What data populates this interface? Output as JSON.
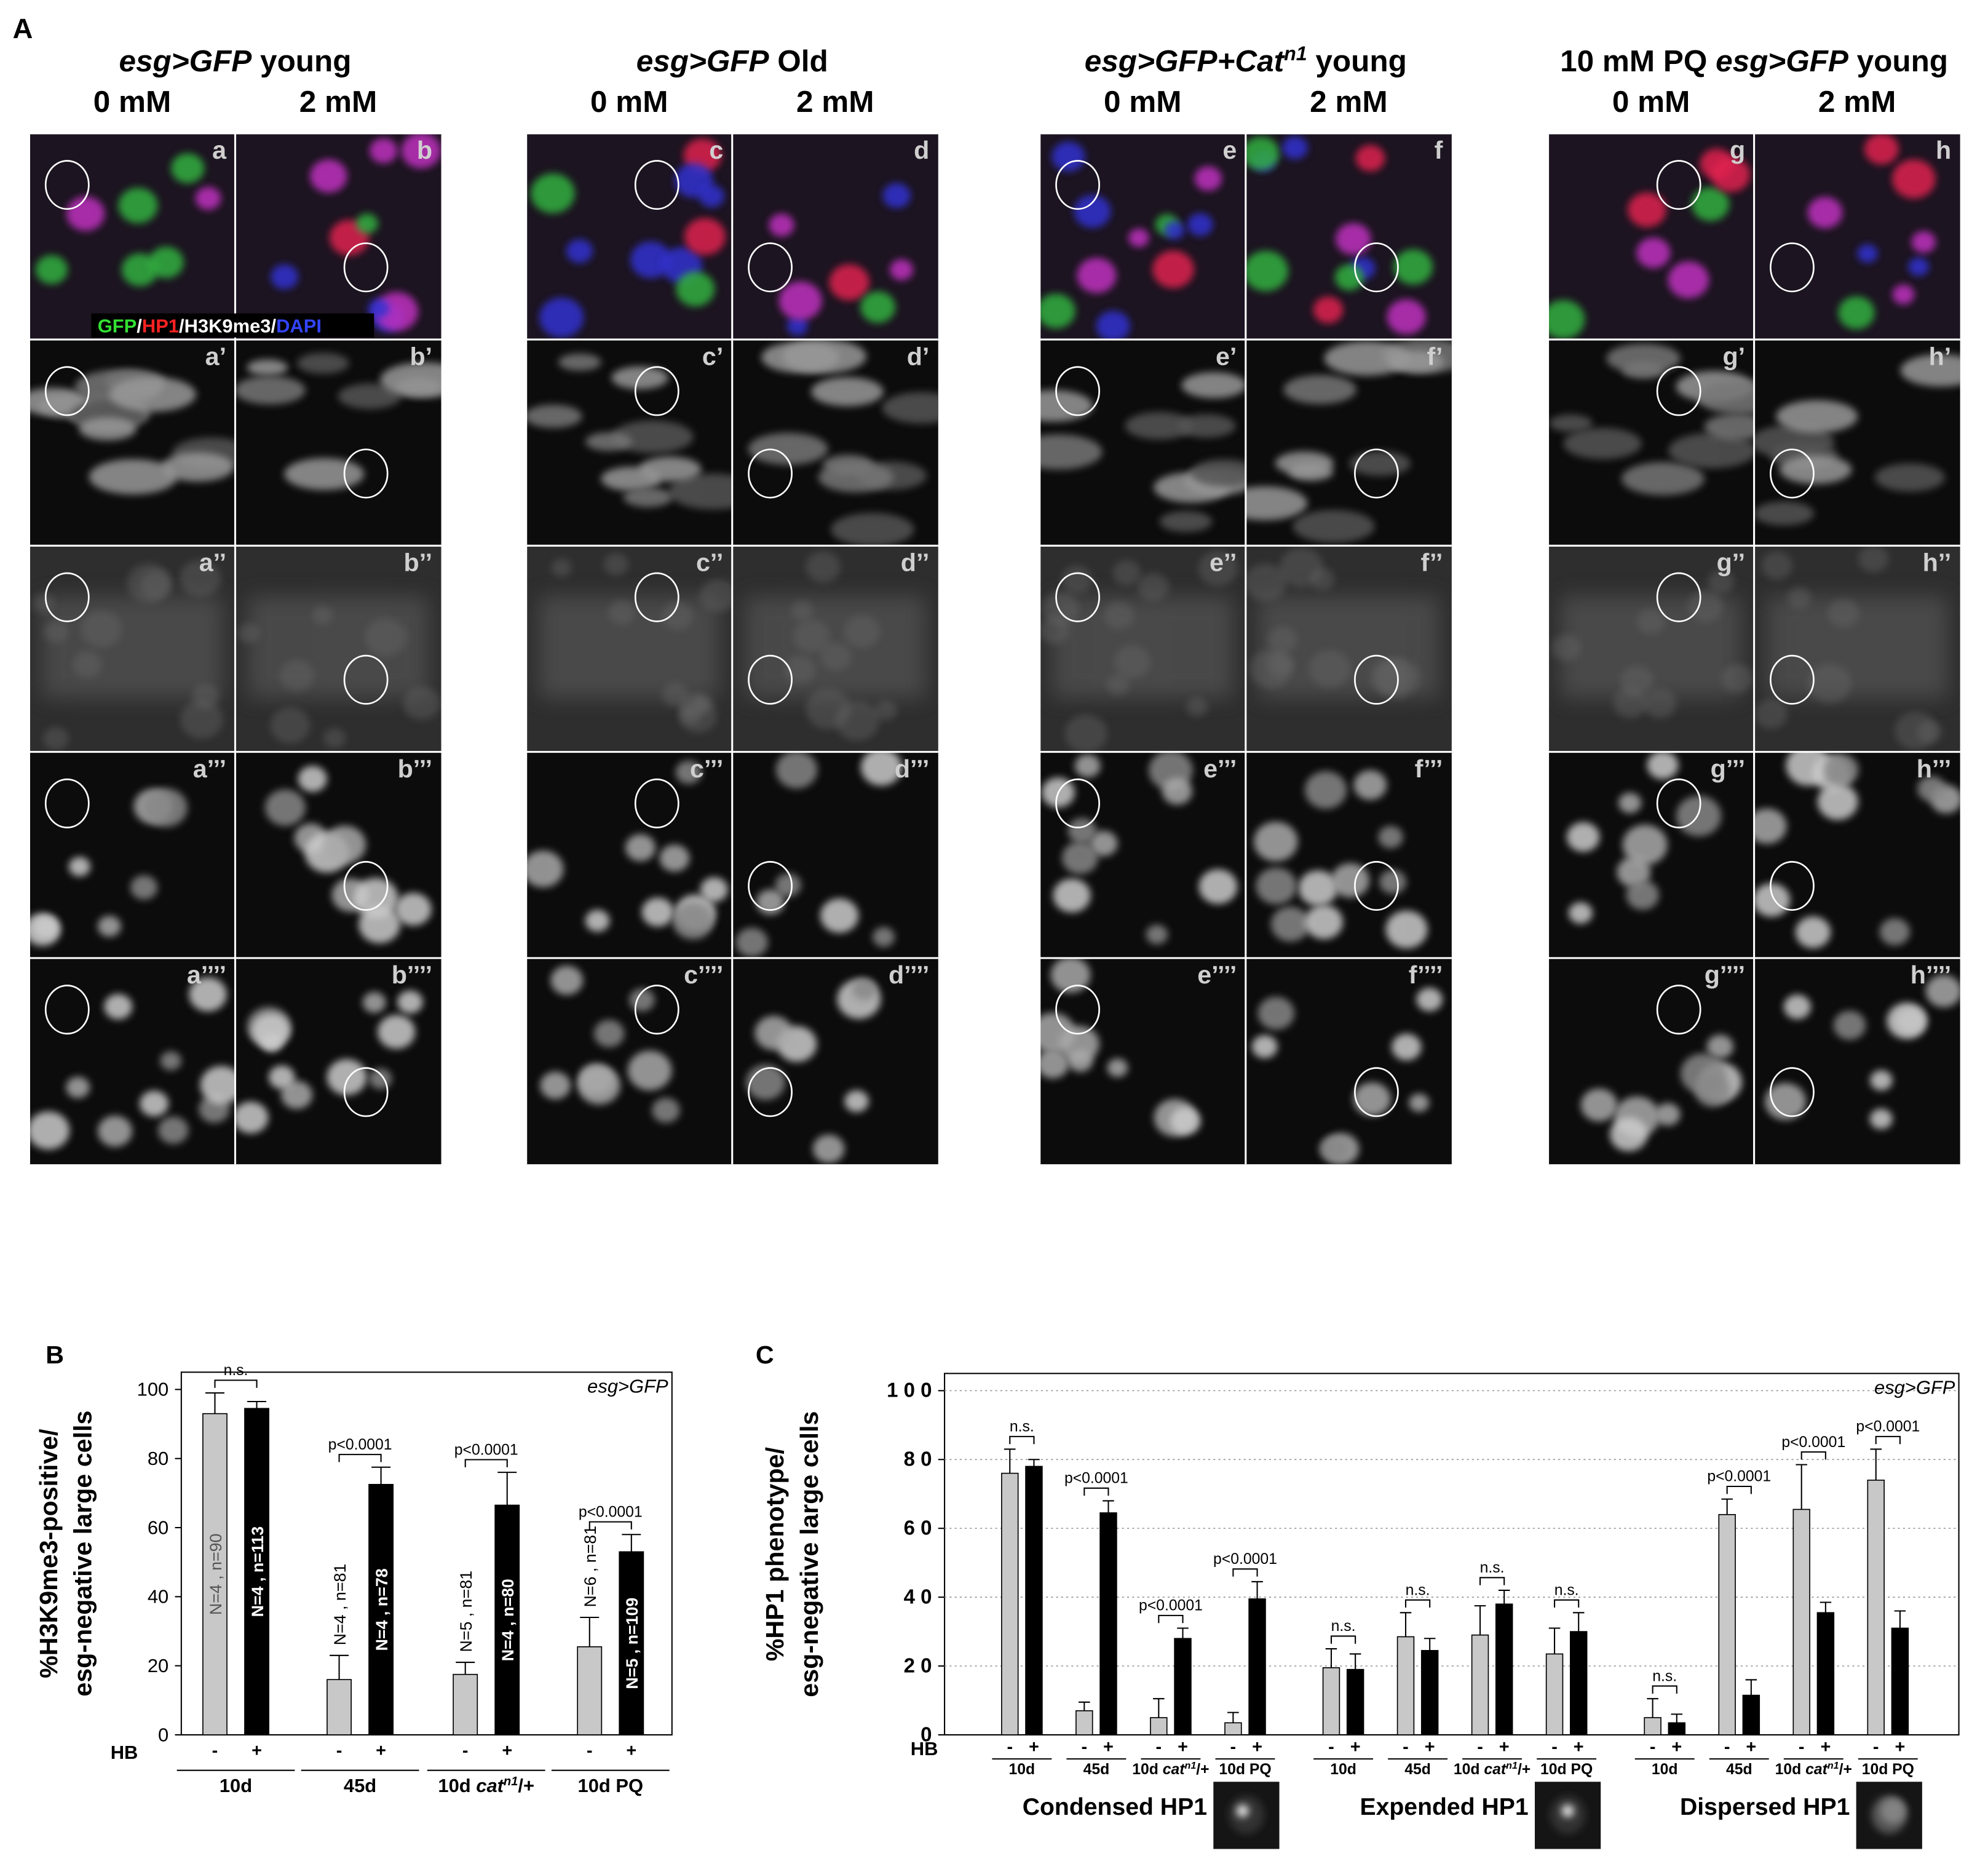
{
  "panel_labels": [
    "A",
    "B",
    "C"
  ],
  "panel_a": {
    "groups": [
      {
        "title": [
          {
            "text": "esg>GFP",
            "italic": true
          },
          {
            "text": " young"
          }
        ],
        "columns": [
          "0 mM",
          "2 mM"
        ],
        "panels": [
          [
            "a",
            "a’",
            "a’’",
            "a’’’",
            "a’’’’"
          ],
          [
            "b",
            "b’",
            "b’’",
            "b’’’",
            "b’’’’"
          ]
        ]
      },
      {
        "title": [
          {
            "text": "esg>GFP",
            "italic": true
          },
          {
            "text": " Old"
          }
        ],
        "columns": [
          "0 mM",
          "2 mM"
        ],
        "panels": [
          [
            "c",
            "c’",
            "c’’",
            "c’’’",
            "c’’’’"
          ],
          [
            "d",
            "d’",
            "d’’",
            "d’’’",
            "d’’’’"
          ]
        ]
      },
      {
        "title": [
          {
            "text": "esg>GFP+Cat",
            "italic": true
          },
          {
            "text": "n1",
            "italic": true,
            "sup": true
          },
          {
            "text": " young"
          }
        ],
        "columns": [
          "0 mM",
          "2 mM"
        ],
        "panels": [
          [
            "e",
            "e’",
            "e’’",
            "e’’’",
            "e’’’’"
          ],
          [
            "f",
            "f’",
            "f’’",
            "f’’’",
            "f’’’’"
          ]
        ]
      },
      {
        "title": [
          {
            "text": "10 mM PQ "
          },
          {
            "text": "esg>GFP",
            "italic": true
          },
          {
            "text": " young"
          }
        ],
        "columns": [
          "0 mM",
          "2 mM"
        ],
        "panels": [
          [
            "g",
            "g’",
            "g’’",
            "g’’’",
            "g’’’’"
          ],
          [
            "h",
            "h’",
            "h’’",
            "h’’’",
            "h’’’’"
          ]
        ]
      }
    ],
    "legend": [
      {
        "text": "GFP",
        "color": "#33e033"
      },
      {
        "text": "/",
        "color": "#ffffff"
      },
      {
        "text": "HP1",
        "color": "#ff2222"
      },
      {
        "text": "/H3K9me3/",
        "color": "#ffffff"
      },
      {
        "text": "DAPI",
        "color": "#3344ff"
      }
    ]
  },
  "chart_data": [
    {
      "type": "bar",
      "annotation": "esg>GFP",
      "y_label": [
        "%H3K9me3-positive/",
        "esg-negative large cells"
      ],
      "x_label": "HB",
      "categories": [
        "10d",
        "45d",
        [
          {
            "text": "10d "
          },
          {
            "text": "cat",
            "italic": true
          },
          {
            "text": "n1",
            "italic": true,
            "sup": true
          },
          {
            "text": "/+"
          }
        ],
        "10d PQ"
      ],
      "series": [
        {
          "name": "-",
          "color": "#c8c8c8",
          "values": [
            93,
            16,
            17.5,
            25.5
          ],
          "errors": [
            6,
            7,
            3.5,
            8.5
          ],
          "bar_labels": [
            "N=4 , n=90",
            "N=4 , n=81",
            "N=5 , n=81",
            "N=6 , n=81"
          ]
        },
        {
          "name": "+",
          "color": "#000000",
          "values": [
            94.5,
            72.5,
            66.5,
            53
          ],
          "errors": [
            2,
            5,
            9.5,
            5
          ],
          "bar_labels": [
            "N=4 , n=113",
            "N=4 , n=78",
            "N=4 , n=80",
            "N=5 , n=109"
          ]
        }
      ],
      "significance": [
        "n.s.",
        "p<0.0001",
        "p<0.0001",
        "p<0.0001"
      ],
      "ylim": [
        0,
        105
      ],
      "yticks": [
        0,
        20,
        40,
        60,
        80,
        100
      ],
      "grid": false
    },
    {
      "type": "bar",
      "annotation": "esg>GFP",
      "y_label": [
        "%HP1 phenotype/",
        "esg-negative large cells"
      ],
      "x_label": "HB",
      "categories": [
        "10d",
        "45d",
        [
          {
            "text": "10d "
          },
          {
            "text": "cat",
            "italic": true
          },
          {
            "text": "n1",
            "italic": true,
            "sup": true
          },
          {
            "text": "/+"
          }
        ],
        "10d PQ",
        "10d",
        "45d",
        [
          {
            "text": "10d "
          },
          {
            "text": "cat",
            "italic": true
          },
          {
            "text": "n1",
            "italic": true,
            "sup": true
          },
          {
            "text": "/+"
          }
        ],
        "10d PQ",
        "10d",
        "45d",
        [
          {
            "text": "10d "
          },
          {
            "text": "cat",
            "italic": true
          },
          {
            "text": "n1",
            "italic": true,
            "sup": true
          },
          {
            "text": "/+"
          }
        ],
        "10d PQ"
      ],
      "groups": [
        "Condensed HP1",
        "Expended HP1",
        "Dispersed HP1"
      ],
      "series": [
        {
          "name": "-",
          "color": "#c8c8c8",
          "values": [
            76,
            7,
            5,
            3.5,
            19.5,
            28.5,
            29,
            23.5,
            5,
            64,
            65.5,
            74
          ],
          "errors": [
            7,
            2.5,
            5.5,
            3,
            5.5,
            7,
            8.5,
            7.5,
            5.5,
            4.5,
            13,
            9
          ]
        },
        {
          "name": "+",
          "color": "#000000",
          "values": [
            78,
            64.5,
            28,
            39.5,
            19,
            24.5,
            38,
            30,
            3.5,
            11.5,
            35.5,
            31
          ],
          "errors": [
            2,
            3.5,
            3,
            5,
            4.5,
            3.5,
            4,
            5.5,
            2.5,
            4.5,
            3,
            5
          ]
        }
      ],
      "significance": [
        "n.s.",
        "p<0.0001",
        "p<0.0001",
        "p<0.0001",
        "n.s.",
        "n.s.",
        "n.s.",
        "n.s.",
        "n.s.",
        "p<0.0001",
        "p<0.0001",
        "p<0.0001"
      ],
      "ylim": [
        0,
        105
      ],
      "yticks": [
        0,
        {
          "value": 20,
          "label": "2 0"
        },
        {
          "value": 40,
          "label": "4 0"
        },
        {
          "value": 60,
          "label": "6 0"
        },
        {
          "value": 80,
          "label": "8 0"
        },
        {
          "value": 100,
          "label": "1 0 0"
        }
      ],
      "grid": true
    }
  ]
}
